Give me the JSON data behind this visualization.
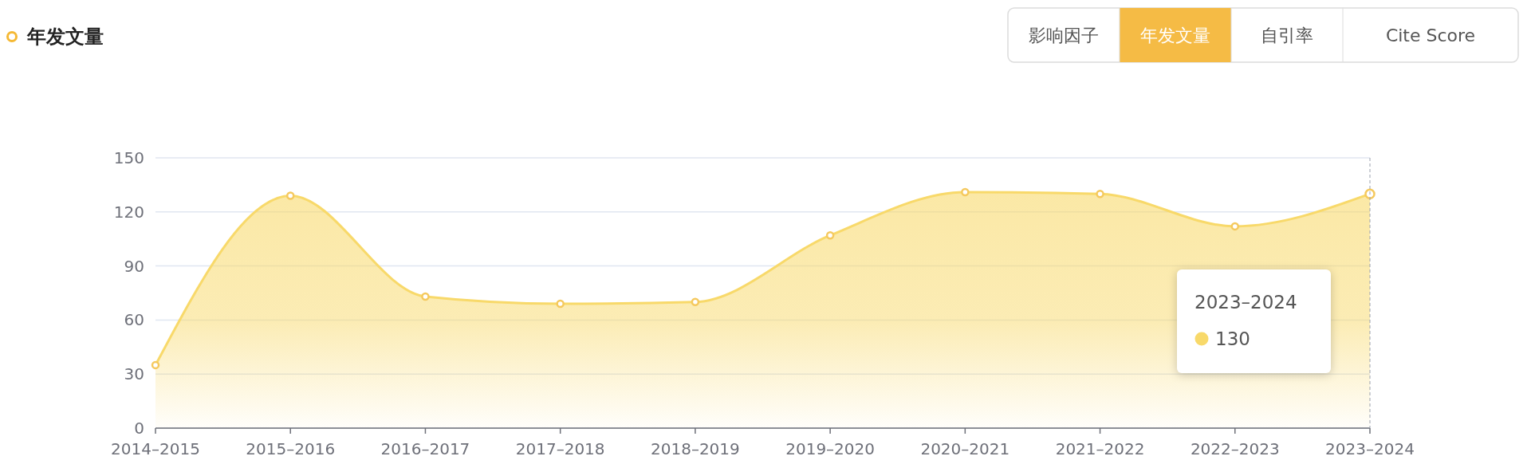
{
  "chart_data": {
    "type": "area",
    "title": "年发文量",
    "categories": [
      "2014–2015",
      "2015–2016",
      "2016–2017",
      "2017–2018",
      "2018–2019",
      "2019–2020",
      "2020–2021",
      "2021–2022",
      "2022–2023",
      "2023–2024"
    ],
    "series": [
      {
        "color": "#f8d96a",
        "values": [
          35,
          129,
          73,
          69,
          70,
          107,
          131,
          130,
          112,
          130
        ]
      }
    ],
    "ylim": [
      0,
      150
    ],
    "yticks": [
      0,
      30,
      60,
      90,
      120,
      150
    ],
    "grid": "y",
    "marker": "circle",
    "annotations": [
      "影响因子",
      "年发文量",
      "自引率",
      "Cite Score",
      "2023–2024",
      "130"
    ]
  }
}
